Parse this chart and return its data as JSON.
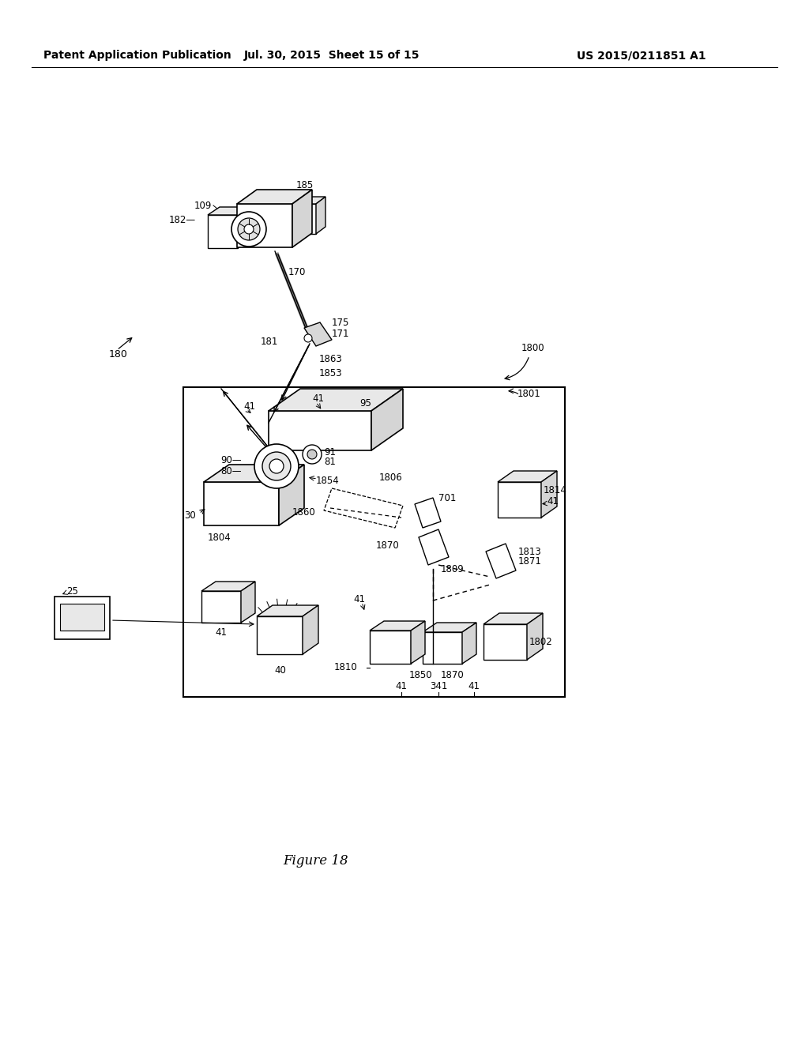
{
  "bg_color": "#ffffff",
  "header_left": "Patent Application Publication",
  "header_center": "Jul. 30, 2015  Sheet 15 of 15",
  "header_right": "US 2015/0211851 A1",
  "figure_label": "Figure 18",
  "header_fontsize": 10,
  "label_fontsize": 8.5
}
